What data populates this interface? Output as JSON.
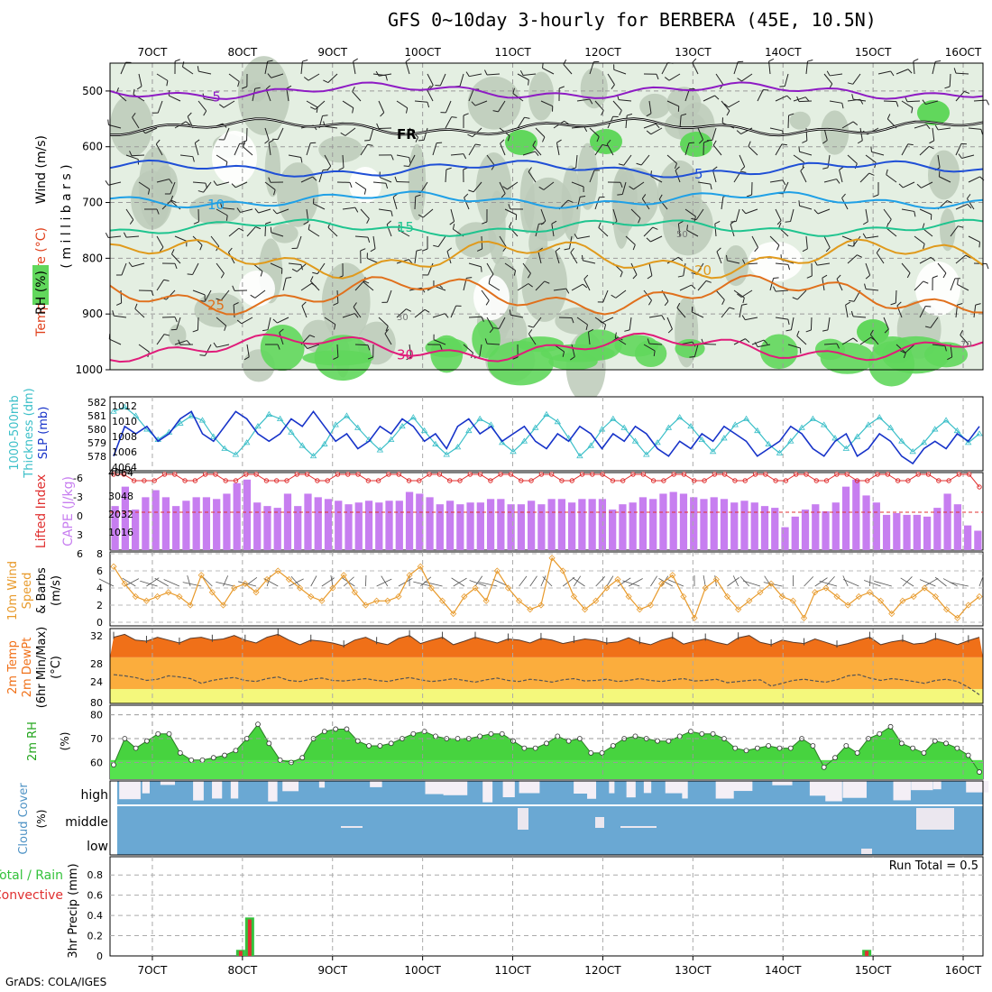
{
  "title": "GFS 0~10day 3-hourly for BERBERA (45E, 10.5N)",
  "footer": "GrADS: COLA/IGES",
  "chart_data": {
    "type": "meteogram",
    "x_tick_labels": [
      "7OCT",
      "8OCT",
      "9OCT",
      "10OCT",
      "11OCT",
      "12OCT",
      "13OCT",
      "14OCT",
      "15OCT",
      "16OCT"
    ],
    "x_range_days": [
      6.53,
      16.22
    ],
    "panels": {
      "upper_air": {
        "ylabel_parts": [
          "Wind (m/s)",
          "Temperature (°C)",
          "RH (%)"
        ],
        "ylabel_unit": "( m i l l i b a r s )",
        "yticks": [
          500,
          600,
          700,
          800,
          900,
          1000
        ],
        "isotherms": [
          {
            "label": "-5",
            "level": 500,
            "color": "#8e1bc4"
          },
          {
            "label": "FR",
            "level": 565,
            "color": "#000000"
          },
          {
            "label": "5",
            "level": 640,
            "color": "#1f4fd6"
          },
          {
            "label": "10",
            "level": 695,
            "color": "#1fa0e6"
          },
          {
            "label": "15",
            "level": 745,
            "color": "#1fc48f"
          },
          {
            "label": "20",
            "level": 800,
            "color": "#e09a1c"
          },
          {
            "label": "25",
            "level": 865,
            "color": "#e0701c"
          },
          {
            "label": "30",
            "level": 960,
            "color": "#e01c7a"
          }
        ],
        "rh_labels": [
          "30",
          "50",
          "70"
        ]
      },
      "slp_thickness": {
        "ylabel_left": "Thickness (dm)",
        "ylabel_title": "1000-500mb",
        "ylabel_right": "SLP (mb)",
        "thickness_ticks": [
          "582",
          "581",
          "580",
          "579",
          "578"
        ],
        "slp_ticks": [
          "1012",
          "1010",
          "1008",
          "1006",
          "4064"
        ],
        "slp_mb": [
          1006,
          1010,
          1009,
          1010,
          1008,
          1009,
          1011,
          1012,
          1009,
          1008,
          1010,
          1012,
          1011,
          1009,
          1008,
          1009,
          1011,
          1010,
          1012,
          1010,
          1008,
          1009,
          1007,
          1008,
          1010,
          1009,
          1011,
          1010,
          1008,
          1009,
          1007,
          1010,
          1011,
          1009,
          1010,
          1008,
          1009,
          1010,
          1008,
          1007,
          1009,
          1008,
          1010,
          1009,
          1007,
          1009,
          1008,
          1010,
          1009,
          1007,
          1006,
          1008,
          1007,
          1009,
          1008,
          1010,
          1009,
          1008,
          1006,
          1007,
          1008,
          1010,
          1009,
          1007,
          1006,
          1008,
          1009,
          1006,
          1007,
          1009,
          1008,
          1006,
          1005,
          1007,
          1008,
          1007,
          1009,
          1008,
          1010
        ],
        "thickness_dm": [
          581.5,
          581.8,
          581.2,
          580.3,
          579.6,
          580.1,
          580.7,
          581.2,
          580.9,
          579.8,
          579.0,
          578.6,
          579.4,
          580.5,
          581.3,
          581.0,
          580.1,
          579.2,
          578.5,
          579.3,
          580.6,
          581.2,
          580.4,
          579.6,
          578.9,
          579.6,
          580.5,
          581.1,
          580.2,
          579.3,
          578.6,
          579.1,
          580.2,
          581.0,
          580.6,
          579.4,
          578.8,
          579.5,
          580.4,
          581.3,
          580.8,
          579.7,
          578.5,
          579.2,
          580.3,
          581.0,
          580.4,
          579.5,
          578.6,
          579.4,
          580.4,
          581.1,
          580.5,
          579.6,
          578.8,
          579.7,
          580.6,
          581.0,
          580.2,
          579.3,
          578.7,
          579.5,
          580.4,
          581.0,
          580.6,
          579.7,
          579.0,
          579.8,
          580.6,
          581.1,
          580.4,
          579.5,
          578.8,
          579.4,
          580.3,
          580.9,
          580.2,
          579.4,
          580.0
        ]
      },
      "lifted_cape": {
        "ylabel_left": "Lifted Index",
        "ylabel_right": "CAPE (J/kg)",
        "li_ticks": [
          "-6",
          "-3",
          "0",
          "3",
          "6"
        ],
        "cape_ticks": [
          "4064",
          "3048",
          "2032",
          "1016"
        ],
        "cape_jkg": [
          2500,
          3600,
          2300,
          3000,
          3400,
          3000,
          2500,
          2800,
          3000,
          3000,
          2900,
          3200,
          3800,
          4000,
          2700,
          2500,
          2400,
          3200,
          2500,
          3200,
          3000,
          2900,
          2800,
          2600,
          2700,
          2800,
          2700,
          2800,
          2800,
          3300,
          3200,
          3000,
          2600,
          2800,
          2600,
          2700,
          2700,
          2900,
          2900,
          2600,
          2600,
          2800,
          2600,
          2900,
          2900,
          2700,
          2900,
          2900,
          2900,
          2300,
          2600,
          2700,
          3000,
          2900,
          3200,
          3300,
          3200,
          3000,
          2900,
          3000,
          2900,
          2700,
          2800,
          2700,
          2500,
          2400,
          1300,
          1900,
          2300,
          2600,
          2200,
          2700,
          3600,
          4000,
          3100,
          2700,
          2000,
          2100,
          2000,
          2000,
          1900,
          2400,
          3200,
          2600,
          1400,
          1100
        ],
        "lifted_index": [
          -6,
          -6,
          -5,
          -5,
          -5,
          -6,
          -6,
          -5,
          -5,
          -6,
          -6,
          -5,
          -5,
          -6,
          -6,
          -5,
          -5,
          -5,
          -6,
          -6,
          -5,
          -5,
          -6,
          -6,
          -6,
          -5,
          -5,
          -6,
          -6,
          -5,
          -5,
          -6,
          -6,
          -5,
          -5,
          -6,
          -6,
          -5,
          -6,
          -6,
          -5,
          -5,
          -6,
          -6,
          -5,
          -5,
          -6,
          -6,
          -6,
          -5,
          -5,
          -6,
          -6,
          -5,
          -5,
          -6,
          -6,
          -5,
          -5,
          -6,
          -6,
          -5,
          -5,
          -6,
          -6,
          -5,
          -5,
          -6,
          -6,
          -5,
          -5,
          -6,
          -6,
          -5,
          -5,
          -6,
          -6,
          -5,
          -5,
          -6,
          -6,
          -5,
          -5,
          -6,
          -6,
          -4
        ]
      },
      "wind10m": {
        "ylabel": [
          "10m Wind",
          "Speed",
          "& Barbs",
          "(m/s)"
        ],
        "yticks": [
          "8",
          "6",
          "4",
          "2",
          "0"
        ],
        "speed_ms": [
          6.5,
          4.5,
          3.0,
          2.5,
          3.0,
          3.5,
          3.0,
          2.0,
          5.5,
          3.5,
          2.0,
          4.0,
          4.5,
          3.5,
          5.0,
          6.0,
          5.0,
          4.0,
          3.0,
          2.5,
          4.0,
          5.5,
          3.5,
          2.0,
          2.5,
          2.5,
          3.0,
          5.5,
          6.5,
          4.0,
          2.5,
          1.0,
          3.0,
          4.0,
          2.5,
          6.0,
          4.0,
          2.5,
          1.5,
          2.0,
          7.5,
          6.0,
          3.0,
          1.5,
          2.5,
          4.0,
          5.0,
          3.0,
          1.5,
          2.0,
          4.5,
          5.5,
          3.0,
          0.5,
          4.0,
          5.0,
          3.0,
          1.5,
          2.5,
          3.5,
          4.5,
          3.0,
          2.5,
          0.5,
          3.5,
          4.0,
          3.0,
          2.0,
          3.0,
          3.5,
          2.5,
          1.0,
          2.5,
          3.0,
          4.0,
          3.0,
          1.5,
          0.5,
          2.0,
          3.0
        ],
        "barb_note": "wind barbs"
      },
      "temp2m": {
        "ylabel": [
          "2m Temp",
          "2m DewPt",
          "(6hr Min/Max)",
          "(°C)"
        ],
        "yticks": [
          "32",
          "28",
          "24",
          "80"
        ],
        "temp_c": [
          31.5,
          32.0,
          31.0,
          30.8,
          31.5,
          31.0,
          30.5,
          31.3,
          31.5,
          31.0,
          31.2,
          31.8,
          31.0,
          30.5,
          31.5,
          32.0,
          31.0,
          30.2,
          31.0,
          30.8,
          30.5,
          30.0,
          31.0,
          31.5,
          30.6,
          30.2,
          31.3,
          31.8,
          30.4,
          31.0,
          31.5,
          30.2,
          30.8,
          31.5,
          31.0,
          30.5,
          31.2,
          31.0,
          30.5,
          31.3,
          31.0,
          30.4,
          30.8,
          31.2,
          31.0,
          30.5,
          30.7,
          31.4,
          30.6,
          30.2,
          31.0,
          31.5,
          30.3,
          30.8,
          31.2,
          30.6,
          30.2,
          31.4,
          31.8,
          30.6,
          30.2,
          31.0,
          30.6,
          30.4,
          31.2,
          30.6,
          30.0,
          30.4,
          31.0,
          31.5,
          30.2,
          30.7,
          31.0,
          30.3,
          30.5,
          31.3,
          30.8,
          30.2,
          30.9,
          31.5
        ],
        "dewpoint_c": [
          25.0,
          24.8,
          24.5,
          24.0,
          24.2,
          24.8,
          24.6,
          24.3,
          23.5,
          24.0,
          24.3,
          24.5,
          24.0,
          23.8,
          24.3,
          24.6,
          24.0,
          23.8,
          24.2,
          24.4,
          24.0,
          23.9,
          24.1,
          24.3,
          24.0,
          23.8,
          24.2,
          24.5,
          24.1,
          23.8,
          24.0,
          24.3,
          24.0,
          23.7,
          24.1,
          24.4,
          24.0,
          23.8,
          24.2,
          24.0,
          23.7,
          24.1,
          24.3,
          23.9,
          24.0,
          24.2,
          23.8,
          24.0,
          24.3,
          24.0,
          23.8,
          24.1,
          24.3,
          23.9,
          24.0,
          24.2,
          23.6,
          23.8,
          24.0,
          24.1,
          23.0,
          23.5,
          24.0,
          24.2,
          23.9,
          23.7,
          24.1,
          24.8,
          25.0,
          24.4,
          24.0,
          24.3,
          24.1,
          23.8,
          23.5,
          24.0,
          24.2,
          23.8,
          22.8,
          21.5
        ]
      },
      "rh2m": {
        "ylabel_left": "2m RH",
        "ylabel_unit": "(%)",
        "yticks": [
          "80",
          "70",
          "60"
        ],
        "rh_percent": [
          59,
          70,
          66,
          69,
          72,
          72,
          64,
          61,
          61,
          62,
          63,
          65,
          70,
          76,
          68,
          61,
          60,
          62,
          70,
          73,
          74,
          74,
          69,
          67,
          67,
          68,
          70,
          72,
          73,
          71,
          70,
          70,
          70,
          71,
          72,
          72,
          69,
          66,
          66,
          68,
          71,
          69,
          70,
          64,
          64,
          67,
          70,
          71,
          70,
          69,
          69,
          71,
          73,
          72,
          72,
          70,
          66,
          65,
          66,
          67,
          66,
          66,
          70,
          67,
          58,
          62,
          67,
          64,
          70,
          72,
          75,
          68,
          66,
          64,
          69,
          68,
          66,
          63,
          56
        ]
      },
      "cloud_cover": {
        "ylabel": [
          "Cloud Cover",
          "(%)"
        ],
        "level_labels": [
          "high",
          "middle",
          "low"
        ]
      },
      "precip": {
        "ylabel_left": "Total / Rain",
        "ylabel_left2": "Convective",
        "ylabel_right": "3hr Precip (mm)",
        "yticks": [
          "0.8",
          "0.6",
          "0.4",
          "0.2",
          "0"
        ],
        "run_total_label": "Run Total = 0.5",
        "bars": [
          {
            "day": 7.98,
            "total_mm": 0.06,
            "convective_mm": 0.05
          },
          {
            "day": 8.08,
            "total_mm": 0.38,
            "convective_mm": 0.36
          },
          {
            "day": 14.93,
            "total_mm": 0.06,
            "convective_mm": 0.05
          }
        ]
      }
    },
    "colors": {
      "rh_light": "#e4efe2",
      "rh_mid": "#bccab9",
      "rh_green": "#61d75c",
      "slp": "#1733c9",
      "thickness": "#3bbfc8",
      "cape": "#c77ef0",
      "li": "#e03030",
      "wind": "#e89a2b",
      "temp": "#f07018",
      "rh2m": "#47d33f",
      "cloud_blue": "#6aa8d3",
      "precip_green": "#34c23c",
      "precip_red": "#e03030"
    }
  }
}
